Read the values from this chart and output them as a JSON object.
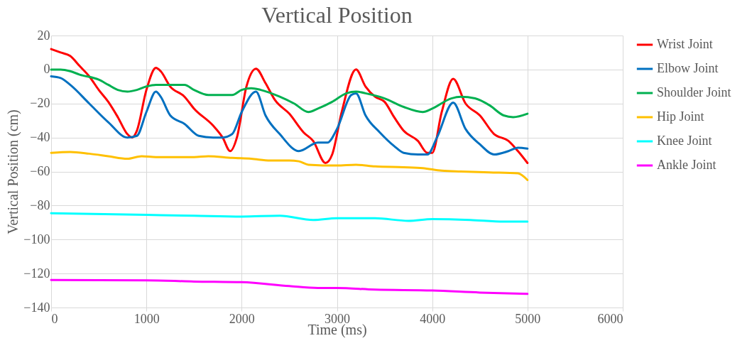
{
  "chart_data": {
    "type": "line",
    "title": "Vertical Position",
    "xlabel": "Time (ms)",
    "ylabel": "Vertical Position (cm)",
    "xlim": [
      0,
      6000
    ],
    "xticks": [
      0,
      1000,
      2000,
      3000,
      4000,
      5000,
      6000
    ],
    "ylim": [
      -140,
      20
    ],
    "yticks": [
      -140,
      -120,
      -100,
      -80,
      -60,
      -40,
      -20,
      0,
      20
    ],
    "grid": true,
    "legend": "right",
    "series": [
      {
        "name": "Wrist Joint",
        "color": "#ff0000",
        "x": [
          0,
          100,
          200,
          300,
          400,
          500,
          600,
          700,
          800,
          850,
          900,
          1000,
          1100,
          1150,
          1250,
          1400,
          1500,
          1700,
          1800,
          1880,
          1950,
          2050,
          2150,
          2250,
          2350,
          2500,
          2650,
          2750,
          2880,
          2950,
          3050,
          3200,
          3300,
          3400,
          3500,
          3600,
          3700,
          3850,
          3950,
          4000,
          4100,
          4220,
          4350,
          4500,
          4650,
          4800,
          4900,
          5000
        ],
        "values": [
          12,
          10,
          8,
          2,
          -4,
          -12,
          -19,
          -28,
          -38,
          -40,
          -36,
          -12,
          1,
          -1,
          -10,
          -16,
          -23,
          -33,
          -40,
          -48,
          -40,
          -10,
          0.5,
          -8,
          -18,
          -26,
          -37,
          -42,
          -55,
          -50,
          -25,
          0,
          -10,
          -16,
          -19,
          -28,
          -36,
          -42,
          -49,
          -49,
          -25,
          -5.5,
          -20,
          -27,
          -38,
          -42,
          -48,
          -55
        ]
      },
      {
        "name": "Elbow Joint",
        "color": "#0070c0",
        "x": [
          0,
          100,
          200,
          400,
          600,
          800,
          900,
          1000,
          1100,
          1150,
          1250,
          1400,
          1550,
          1700,
          1800,
          1900,
          2000,
          2150,
          2250,
          2400,
          2600,
          2800,
          2900,
          3000,
          3150,
          3200,
          3300,
          3450,
          3600,
          3700,
          3850,
          3950,
          4050,
          4220,
          4350,
          4500,
          4650,
          4800,
          4900,
          5000
        ],
        "values": [
          -4,
          -5,
          -9,
          -20,
          -31,
          -40,
          -39,
          -25,
          -13,
          -16,
          -27,
          -32,
          -39,
          -40,
          -40,
          -38,
          -25,
          -13,
          -27,
          -38,
          -48,
          -43,
          -43,
          -35,
          -15,
          -14,
          -27,
          -37,
          -45,
          -49,
          -50,
          -50,
          -40,
          -19.5,
          -35,
          -44,
          -50,
          -48,
          -46,
          -46.5
        ]
      },
      {
        "name": "Shoulder Joint",
        "color": "#00b050",
        "x": [
          0,
          100,
          200,
          300,
          500,
          600,
          700,
          800,
          900,
          1000,
          1100,
          1300,
          1400,
          1500,
          1650,
          1800,
          1900,
          2000,
          2100,
          2200,
          2400,
          2550,
          2700,
          2800,
          2950,
          3100,
          3200,
          3300,
          3500,
          3700,
          3900,
          4000,
          4200,
          4300,
          4450,
          4600,
          4750,
          4850,
          5000
        ],
        "values": [
          0,
          0,
          -1,
          -3,
          -6,
          -9,
          -12,
          -13,
          -12,
          -10,
          -9,
          -9,
          -9,
          -12,
          -15,
          -15,
          -15,
          -12,
          -11,
          -12,
          -16,
          -20,
          -25,
          -23,
          -19,
          -14,
          -13,
          -14,
          -17,
          -22,
          -25,
          -23,
          -17,
          -16,
          -17,
          -21,
          -27,
          -28,
          -26
        ]
      },
      {
        "name": "Hip Joint",
        "color": "#ffc000",
        "x": [
          0,
          200,
          400,
          600,
          800,
          950,
          1100,
          1300,
          1500,
          1650,
          1900,
          2100,
          2300,
          2500,
          2600,
          2700,
          3000,
          3200,
          3400,
          3700,
          3900,
          4100,
          4300,
          4600,
          4900,
          5000
        ],
        "values": [
          -49,
          -48.5,
          -49.5,
          -51,
          -52.5,
          -51,
          -51.5,
          -51.5,
          -51.5,
          -51,
          -52,
          -52.5,
          -53.5,
          -53.5,
          -54,
          -56,
          -56.5,
          -56,
          -57,
          -57.5,
          -58,
          -59.5,
          -60,
          -60.5,
          -61,
          -65
        ]
      },
      {
        "name": "Knee Joint",
        "color": "#00ffff",
        "x": [
          0,
          1000,
          1500,
          2000,
          2400,
          2750,
          3000,
          3400,
          3750,
          4000,
          4400,
          4750,
          5000
        ],
        "values": [
          -84.5,
          -85.5,
          -86,
          -86.5,
          -86,
          -88.5,
          -87.5,
          -87.5,
          -89,
          -88,
          -88.5,
          -89.5,
          -89.5
        ]
      },
      {
        "name": "Ankle Joint",
        "color": "#ff00ff",
        "x": [
          0,
          1000,
          1500,
          2000,
          2500,
          2800,
          3000,
          3400,
          4000,
          4500,
          5000
        ],
        "values": [
          -123.8,
          -124,
          -124.7,
          -125.1,
          -127.4,
          -128.5,
          -128.5,
          -129.5,
          -130,
          -131.2,
          -132
        ]
      }
    ]
  }
}
